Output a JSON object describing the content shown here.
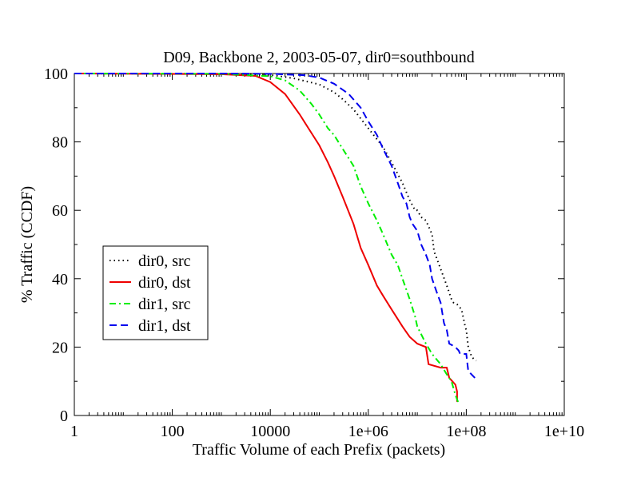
{
  "chart_data": {
    "type": "line",
    "title": "D09, Backbone 2, 2003-05-07, dir0=southbound",
    "xlabel": "Traffic Volume of each Prefix (packets)",
    "ylabel": "% Traffic (CCDF)",
    "xscale": "log",
    "xlim": [
      1,
      10000000000
    ],
    "ylim": [
      0,
      100
    ],
    "xticks": [
      {
        "value": 1,
        "label": "1"
      },
      {
        "value": 100,
        "label": "100"
      },
      {
        "value": 10000,
        "label": "10000"
      },
      {
        "value": 1000000,
        "label": "1e+06"
      },
      {
        "value": 100000000,
        "label": "1e+08"
      },
      {
        "value": 10000000000,
        "label": "1e+10"
      }
    ],
    "yticks": [
      0,
      20,
      40,
      60,
      80,
      100
    ],
    "grid": false,
    "legend_position": "center-left",
    "series": [
      {
        "name": "dir0, src",
        "color": "#000000",
        "style": "dotted",
        "points": [
          [
            1,
            100
          ],
          [
            1000,
            99.9
          ],
          [
            10000,
            99.6
          ],
          [
            30000,
            98.6
          ],
          [
            100000,
            96.8
          ],
          [
            200000,
            94.5
          ],
          [
            300000,
            92.5
          ],
          [
            500000,
            89.5
          ],
          [
            1000000,
            84
          ],
          [
            2000000,
            78.5
          ],
          [
            3000000,
            74
          ],
          [
            5000000,
            68
          ],
          [
            7000000,
            63
          ],
          [
            9000000,
            60
          ],
          [
            10000000,
            60
          ],
          [
            12000000,
            58
          ],
          [
            15000000,
            57
          ],
          [
            20000000,
            53
          ],
          [
            22000000,
            48
          ],
          [
            28000000,
            44
          ],
          [
            40000000,
            38
          ],
          [
            50000000,
            34
          ],
          [
            55000000,
            33
          ],
          [
            65000000,
            32.5
          ],
          [
            80000000,
            31
          ],
          [
            95000000,
            26
          ],
          [
            100000000,
            25
          ],
          [
            110000000,
            20
          ],
          [
            130000000,
            17
          ],
          [
            160000000,
            16
          ]
        ]
      },
      {
        "name": "dir0, dst",
        "color": "#ee0000",
        "style": "solid",
        "points": [
          [
            1,
            100
          ],
          [
            1000,
            99.8
          ],
          [
            5000,
            99.3
          ],
          [
            10000,
            97.5
          ],
          [
            20000,
            94
          ],
          [
            40000,
            88
          ],
          [
            60000,
            84
          ],
          [
            100000,
            79
          ],
          [
            150000,
            74
          ],
          [
            200000,
            70
          ],
          [
            300000,
            64
          ],
          [
            500000,
            56
          ],
          [
            700000,
            49
          ],
          [
            1000000,
            44
          ],
          [
            1500000,
            38
          ],
          [
            2000000,
            35
          ],
          [
            3000000,
            31
          ],
          [
            5000000,
            26
          ],
          [
            7000000,
            23
          ],
          [
            10000000,
            21
          ],
          [
            15000000,
            20
          ],
          [
            17000000,
            15
          ],
          [
            30000000,
            14
          ],
          [
            40000000,
            14
          ],
          [
            45000000,
            11
          ],
          [
            60000000,
            9
          ],
          [
            65000000,
            7
          ],
          [
            65000000,
            4
          ]
        ]
      },
      {
        "name": "dir1, src",
        "color": "#00ee00",
        "style": "dashdot",
        "points": [
          [
            1,
            100
          ],
          [
            1000,
            99.9
          ],
          [
            10000,
            99.2
          ],
          [
            20000,
            98
          ],
          [
            40000,
            95
          ],
          [
            70000,
            91
          ],
          [
            100000,
            88
          ],
          [
            150000,
            84
          ],
          [
            200000,
            82
          ],
          [
            300000,
            78
          ],
          [
            500000,
            73
          ],
          [
            700000,
            67
          ],
          [
            1000000,
            62
          ],
          [
            1500000,
            57
          ],
          [
            2000000,
            53
          ],
          [
            3000000,
            47
          ],
          [
            4000000,
            44
          ],
          [
            5000000,
            40
          ],
          [
            7000000,
            34
          ],
          [
            9000000,
            29
          ],
          [
            10000000,
            26
          ],
          [
            15000000,
            21
          ],
          [
            20000000,
            18
          ],
          [
            30000000,
            15
          ],
          [
            40000000,
            12
          ],
          [
            50000000,
            10
          ],
          [
            60000000,
            6
          ],
          [
            70000000,
            3.5
          ]
        ]
      },
      {
        "name": "dir1, dst",
        "color": "#0000ee",
        "style": "dashed",
        "points": [
          [
            1,
            100
          ],
          [
            1000,
            100
          ],
          [
            10000,
            99.9
          ],
          [
            50000,
            99.5
          ],
          [
            100000,
            98.8
          ],
          [
            200000,
            97
          ],
          [
            400000,
            94
          ],
          [
            700000,
            90
          ],
          [
            1000000,
            86
          ],
          [
            1500000,
            82
          ],
          [
            2000000,
            78
          ],
          [
            3000000,
            73
          ],
          [
            4000000,
            68
          ],
          [
            5000000,
            64
          ],
          [
            6000000,
            62
          ],
          [
            7000000,
            58
          ],
          [
            8000000,
            56
          ],
          [
            10000000,
            54
          ],
          [
            12000000,
            50
          ],
          [
            15000000,
            47
          ],
          [
            18000000,
            44
          ],
          [
            20000000,
            40
          ],
          [
            25000000,
            36
          ],
          [
            30000000,
            33
          ],
          [
            35000000,
            27
          ],
          [
            40000000,
            25
          ],
          [
            45000000,
            21
          ],
          [
            60000000,
            20
          ],
          [
            70000000,
            19
          ],
          [
            75000000,
            18
          ],
          [
            100000000,
            18
          ],
          [
            110000000,
            13
          ],
          [
            150000000,
            11
          ]
        ]
      }
    ]
  }
}
